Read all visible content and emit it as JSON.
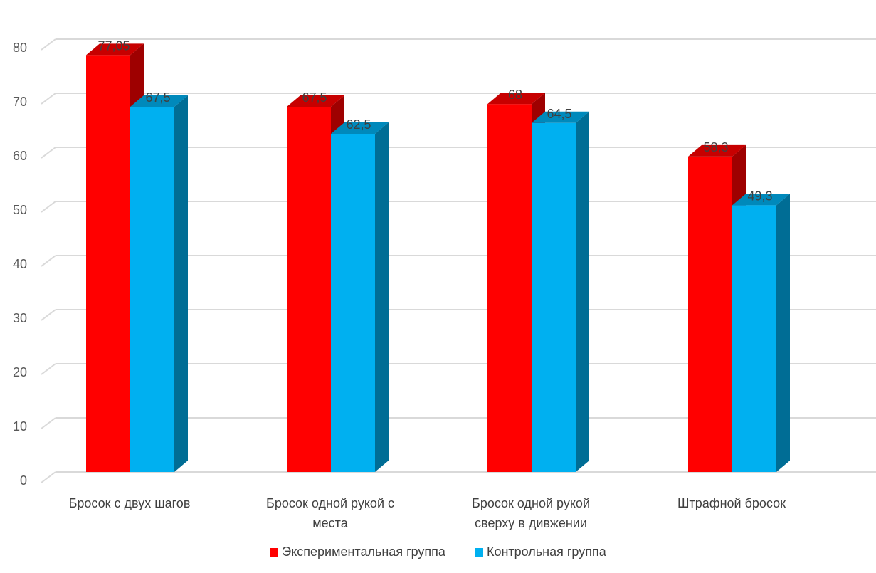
{
  "chart_data": {
    "type": "bar",
    "style": "3d-clustered-column",
    "categories": [
      [
        "Бросок с двух шагов"
      ],
      [
        "Бросок одной рукой с",
        "места"
      ],
      [
        "Бросок одной рукой",
        "сверху в дивжении"
      ],
      [
        "Штрафной бросок"
      ]
    ],
    "series": [
      {
        "name": "Экспериментальная группа",
        "values": [
          77.05,
          67.5,
          68,
          58.3
        ],
        "labels": [
          "77,05",
          "67,5",
          "68",
          "58,3"
        ],
        "color": "#ff0000"
      },
      {
        "name": "Контрольная группа",
        "values": [
          67.5,
          62.5,
          64.5,
          49.3
        ],
        "labels": [
          "67,5",
          "62,5",
          "64,5",
          "49,3"
        ],
        "color": "#00b0f0"
      }
    ],
    "title": "",
    "xlabel": "",
    "ylabel": "",
    "ylim": [
      0,
      80
    ],
    "yticks": [
      0,
      10,
      20,
      30,
      40,
      50,
      60,
      70,
      80
    ],
    "grid": true,
    "legend_position": "bottom"
  },
  "legend": {
    "items": [
      {
        "label": "Экспериментальная группа",
        "color": "#ff0000"
      },
      {
        "label": "Контрольная группа",
        "color": "#00b0f0"
      }
    ]
  }
}
